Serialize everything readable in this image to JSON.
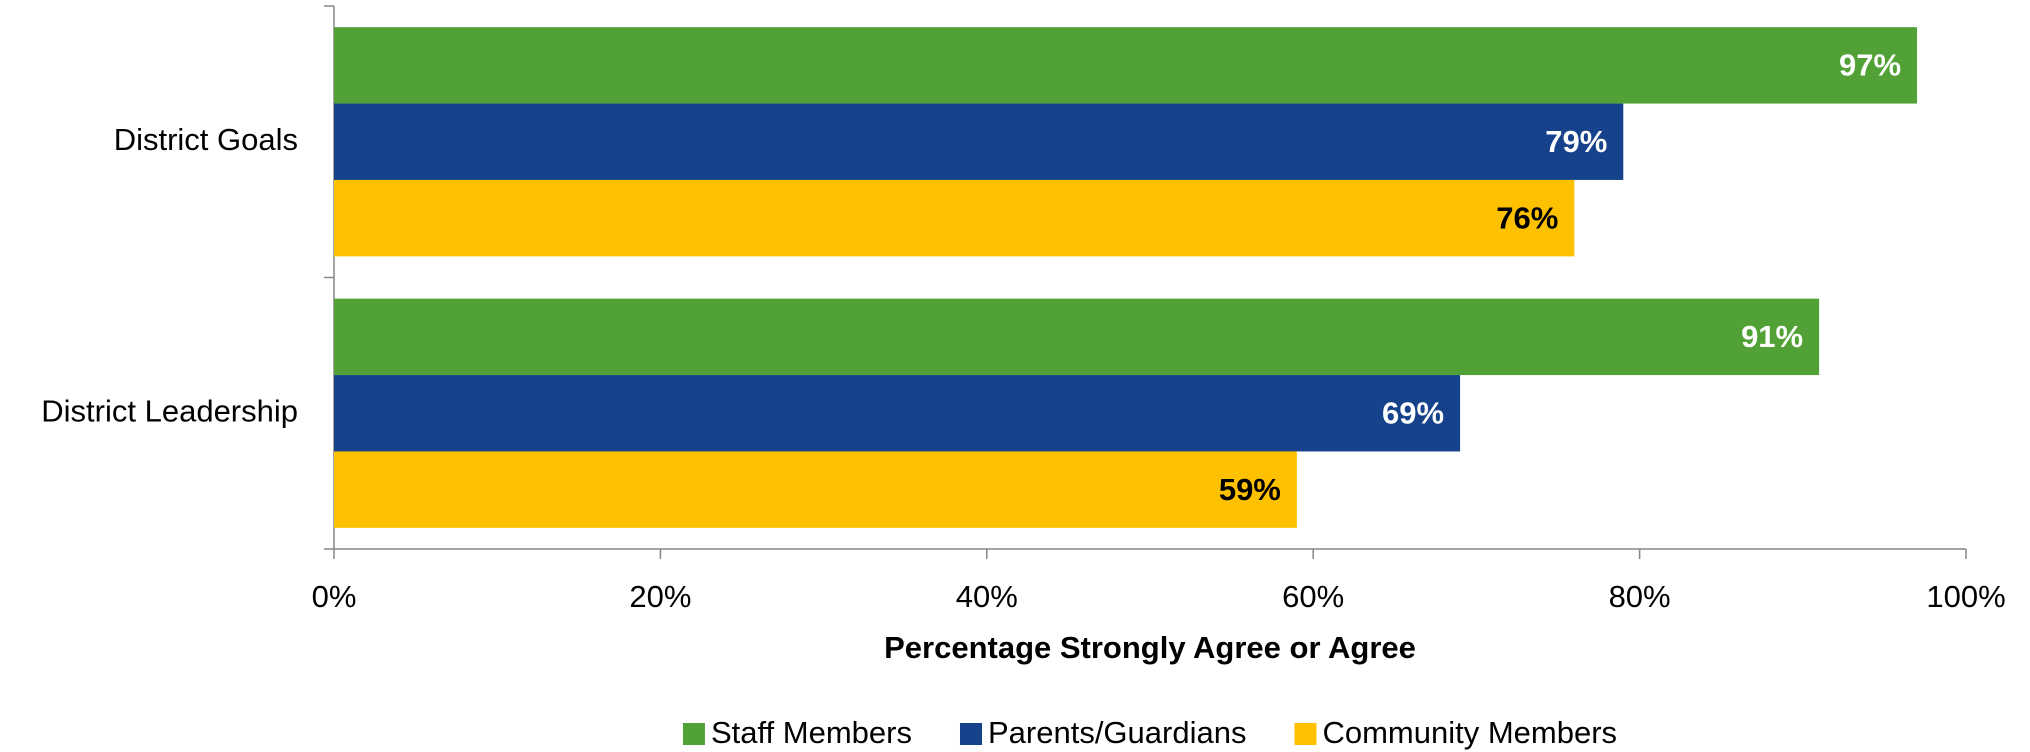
{
  "chart_data": {
    "type": "hbar",
    "categories": [
      "District Goals",
      "District Leadership"
    ],
    "series": [
      {
        "name": "Staff Members",
        "color": "#52a136",
        "values": [
          97,
          91
        ],
        "value_labels": [
          "97%",
          "91%"
        ]
      },
      {
        "name": "Parents/Guardians",
        "color": "#15428b",
        "values": [
          79,
          69
        ],
        "value_labels": [
          "79%",
          "69%"
        ]
      },
      {
        "name": "Community Members",
        "color": "#fdc100",
        "values": [
          76,
          59
        ],
        "value_labels": [
          "76%",
          "59%"
        ]
      }
    ],
    "xlabel": "Percentage Strongly Agree or Agree",
    "xlim": [
      0,
      100
    ],
    "xticks": [
      {
        "value": 0,
        "label": "0%"
      },
      {
        "value": 20,
        "label": "20%"
      },
      {
        "value": 40,
        "label": "40%"
      },
      {
        "value": 60,
        "label": "60%"
      },
      {
        "value": 80,
        "label": "80%"
      },
      {
        "value": 100,
        "label": "100%"
      }
    ],
    "legend": "bottom"
  }
}
